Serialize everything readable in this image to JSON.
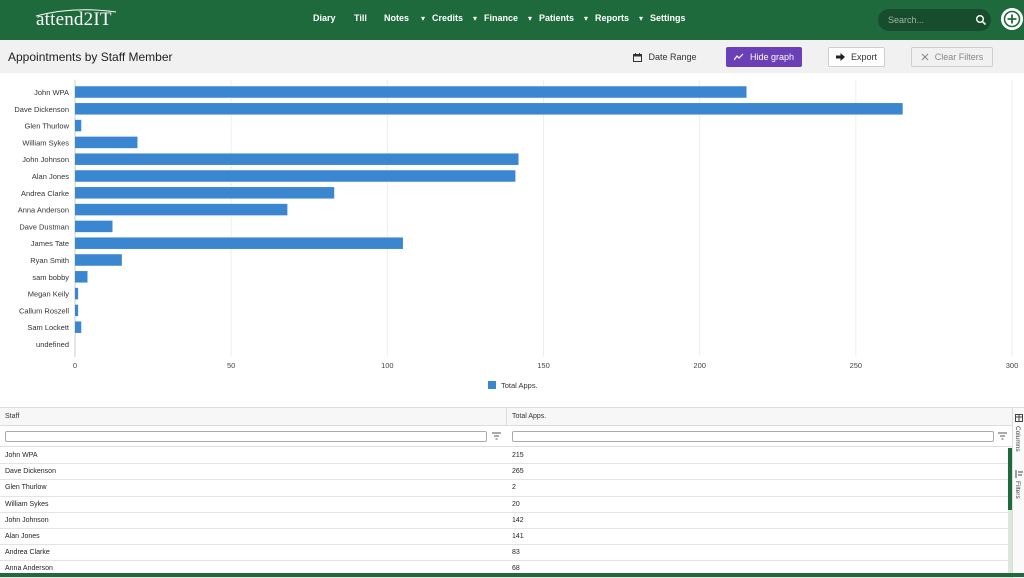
{
  "nav": {
    "logo": "attend2IT",
    "items": [
      {
        "label": "Diary",
        "dropdown": false
      },
      {
        "label": "Till",
        "dropdown": false
      },
      {
        "label": "Notes",
        "dropdown": false
      },
      {
        "label": "Credits",
        "dropdown": true
      },
      {
        "label": "Finance",
        "dropdown": true
      },
      {
        "label": "Patients",
        "dropdown": true
      },
      {
        "label": "Reports",
        "dropdown": true
      },
      {
        "label": "Settings",
        "dropdown": true
      }
    ],
    "search_placeholder": "Search...",
    "search_icon": "search-icon",
    "add_icon": "plus-circle-icon",
    "bar_color": "#1f6a3c"
  },
  "toolbar": {
    "title": "Appointments by Staff Member",
    "date_range_label": "Date Range",
    "hide_graph_label": "Hide graph",
    "export_label": "Export",
    "clear_filters_label": "Clear Filters",
    "accent_color": "#6a3fb8"
  },
  "chart_data": {
    "type": "bar",
    "orientation": "horizontal",
    "categories": [
      "John WPA",
      "Dave Dickenson",
      "Glen Thurlow",
      "William Sykes",
      "John Johnson",
      "Alan Jones",
      "Andrea Clarke",
      "Anna Anderson",
      "Dave Dustman",
      "James Tate",
      "Ryan Smith",
      "sam bobby",
      "Megan Keily",
      "Callum Roszell",
      "Sam Lockett",
      "undefined"
    ],
    "series": [
      {
        "name": "Total Apps.",
        "values": [
          215,
          265,
          2,
          20,
          142,
          141,
          83,
          68,
          12,
          105,
          15,
          4,
          1,
          1,
          2,
          0
        ],
        "color": "#3a86d1"
      }
    ],
    "xlim": [
      0,
      300
    ],
    "xticks": [
      "0",
      "50",
      "100",
      "150",
      "200",
      "250",
      "300"
    ],
    "grid": true,
    "legend_position": "bottom"
  },
  "grid": {
    "columns": [
      "Staff",
      "Total Apps."
    ],
    "rows": [
      {
        "staff": "John WPA",
        "total": "215"
      },
      {
        "staff": "Dave Dickenson",
        "total": "265"
      },
      {
        "staff": "Glen Thurlow",
        "total": "2"
      },
      {
        "staff": "William Sykes",
        "total": "20"
      },
      {
        "staff": "John Johnson",
        "total": "142"
      },
      {
        "staff": "Alan Jones",
        "total": "141"
      },
      {
        "staff": "Andrea Clarke",
        "total": "83"
      },
      {
        "staff": "Anna Anderson",
        "total": "68"
      }
    ],
    "side_tabs": [
      "Columns",
      "Filters"
    ]
  }
}
